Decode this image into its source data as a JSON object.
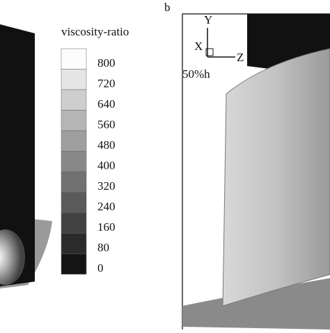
{
  "panel_b": {
    "label": "b"
  },
  "legend": {
    "title": "viscosity-ratio",
    "levels": [
      800,
      720,
      640,
      560,
      480,
      400,
      320,
      240,
      160,
      80,
      0
    ]
  },
  "axes": {
    "y": "Y",
    "x": "X",
    "z": "Z"
  },
  "span_label": "50%h"
}
